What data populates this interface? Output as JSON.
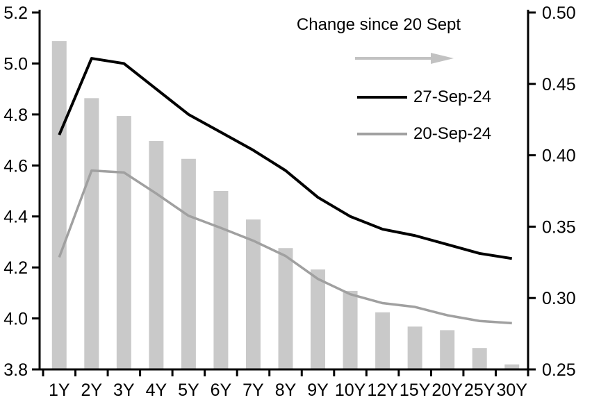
{
  "chart_data": {
    "type": "combo-bar-line",
    "categories": [
      "1Y",
      "2Y",
      "3Y",
      "4Y",
      "5Y",
      "6Y",
      "7Y",
      "8Y",
      "9Y",
      "10Y",
      "12Y",
      "15Y",
      "20Y",
      "25Y",
      "30Y"
    ],
    "series": [
      {
        "name": "Change since 20 Sept",
        "type": "bar",
        "axis": "right",
        "color": "#c9c9c9",
        "values": [
          0.48,
          0.44,
          0.4275,
          0.41,
          0.3975,
          0.375,
          0.355,
          0.335,
          0.32,
          0.305,
          0.29,
          0.28,
          0.2775,
          0.265,
          0.2535
        ]
      },
      {
        "name": "27-Sep-24",
        "type": "line",
        "axis": "left",
        "color": "#000000",
        "values": [
          4.72,
          5.02,
          5.0,
          4.9,
          4.8,
          4.73,
          4.66,
          4.58,
          4.475,
          4.4,
          4.35,
          4.325,
          4.29,
          4.255,
          4.235
        ]
      },
      {
        "name": "20-Sep-24",
        "type": "line",
        "axis": "left",
        "color": "#a0a0a0",
        "values": [
          4.24,
          4.58,
          4.5725,
          4.49,
          4.4025,
          4.355,
          4.305,
          4.245,
          4.155,
          4.095,
          4.06,
          4.045,
          4.0125,
          3.99,
          3.9815
        ]
      }
    ],
    "left_axis": {
      "min": 3.8,
      "max": 5.2,
      "ticks": [
        "5.2",
        "5.0",
        "4.8",
        "4.6",
        "4.4",
        "4.2",
        "4.0",
        "3.8"
      ]
    },
    "right_axis": {
      "min": 0.25,
      "max": 0.5,
      "ticks": [
        "0.50",
        "0.45",
        "0.40",
        "0.35",
        "0.30",
        "0.25"
      ]
    },
    "legend": {
      "bar_series_label": "Change since 20 Sept",
      "line1_label": "27-Sep-24",
      "line2_label": "20-Sep-24"
    },
    "arrow_color": "#c2c2c2",
    "axis_color": "#000000",
    "grid": false,
    "legend_position": "top-right-inside"
  }
}
